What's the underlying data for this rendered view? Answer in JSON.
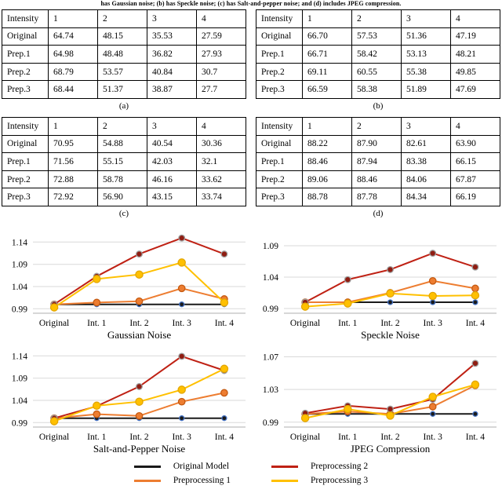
{
  "caption": "has Gaussian noise; (b) has Speckle noise; (c) has Salt-and-pepper noise; and (d) includes JPEG compression.",
  "tables": [
    {
      "caption_label": "(a)",
      "headers": [
        "Intensity",
        "1",
        "2",
        "3",
        "4"
      ],
      "rows": [
        [
          "Original",
          "64.74",
          "48.15",
          "35.53",
          "27.59"
        ],
        [
          "Prep.1",
          "64.98",
          "48.48",
          "36.82",
          "27.93"
        ],
        [
          "Prep.2",
          "68.79",
          "53.57",
          "40.84",
          "30.7"
        ],
        [
          "Prep.3",
          "68.44",
          "51.37",
          "38.87",
          "27.7"
        ]
      ]
    },
    {
      "caption_label": "(b)",
      "headers": [
        "Intensity",
        "1",
        "2",
        "3",
        "4"
      ],
      "rows": [
        [
          "Original",
          "66.70",
          "57.53",
          "51.36",
          "47.19"
        ],
        [
          "Prep.1",
          "66.71",
          "58.42",
          "53.13",
          "48.21"
        ],
        [
          "Prep.2",
          "69.11",
          "60.55",
          "55.38",
          "49.85"
        ],
        [
          "Prep.3",
          "66.59",
          "58.38",
          "51.89",
          "47.69"
        ]
      ]
    },
    {
      "caption_label": "(c)",
      "headers": [
        "Intensity",
        "1",
        "2",
        "3",
        "4"
      ],
      "rows": [
        [
          "Original",
          "70.95",
          "54.88",
          "40.54",
          "30.36"
        ],
        [
          "Prep.1",
          "71.56",
          "55.15",
          "42.03",
          "32.1"
        ],
        [
          "Prep.2",
          "72.88",
          "58.78",
          "46.16",
          "33.62"
        ],
        [
          "Prep.3",
          "72.92",
          "56.90",
          "43.15",
          "33.74"
        ]
      ]
    },
    {
      "caption_label": "(d)",
      "headers": [
        "Intensity",
        "1",
        "2",
        "3",
        "4"
      ],
      "rows": [
        [
          "Original",
          "88.22",
          "87.90",
          "82.61",
          "63.90"
        ],
        [
          "Prep.1",
          "88.46",
          "87.94",
          "83.38",
          "66.15"
        ],
        [
          "Prep.2",
          "89.06",
          "88.46",
          "84.06",
          "67.87"
        ],
        [
          "Prep.3",
          "88.78",
          "87.78",
          "84.34",
          "66.19"
        ]
      ]
    }
  ],
  "colors": {
    "original_model": "#1a1a1a",
    "preprocessing_1": "#ed7d31",
    "preprocessing_2": "#bf2114",
    "preprocessing_3": "#ffc000",
    "gridline": "#d9d9d9",
    "axis": "#bfbfbf"
  },
  "legend": [
    {
      "label": "Original Model",
      "color": "#1a1a1a"
    },
    {
      "label": "Preprocessing 2",
      "color": "#bf2114"
    },
    {
      "label": "Preprocessing 1",
      "color": "#ed7d31"
    },
    {
      "label": "Preprocessing 3",
      "color": "#ffc000"
    }
  ],
  "chart_data": [
    {
      "type": "line",
      "title": "Gaussian Noise",
      "x_labels": [
        "Original",
        "Int. 1",
        "Int. 2",
        "Int. 3",
        "Int. 4"
      ],
      "y_ticks": [
        0.99,
        1.04,
        1.09,
        1.14
      ],
      "ylim": [
        0.98,
        1.16
      ],
      "grid": true,
      "series": [
        {
          "name": "Original Model",
          "color": "#1a1a1a",
          "marker_stroke": "#4472c4",
          "marker_r": 3.0,
          "values": [
            1.0,
            1.0,
            1.0,
            1.0,
            1.0
          ]
        },
        {
          "name": "Preprocessing 1",
          "color": "#ed7d31",
          "marker_stroke": "#c55a11",
          "marker_r": 4.2,
          "values": [
            1.0,
            1.004,
            1.007,
            1.036,
            1.012
          ]
        },
        {
          "name": "Preprocessing 2",
          "color": "#bf2114",
          "marker_fill": "#8f1d12",
          "marker_stroke": "#9e9e9e",
          "marker_r": 3.8,
          "values": [
            1.0,
            1.063,
            1.113,
            1.149,
            1.113
          ]
        },
        {
          "name": "Preprocessing 3",
          "color": "#ffc000",
          "marker_stroke": "#e3a600",
          "marker_r": 4.6,
          "values": [
            0.993,
            1.057,
            1.067,
            1.094,
            1.004
          ]
        }
      ]
    },
    {
      "type": "line",
      "title": "Speckle Noise",
      "x_labels": [
        "Original",
        "Int. 1",
        "Int. 2",
        "Int. 3",
        "Int. 4"
      ],
      "y_ticks": [
        0.99,
        1.04,
        1.09
      ],
      "ylim": [
        0.9825,
        1.11
      ],
      "grid": true,
      "series": [
        {
          "name": "Original Model",
          "color": "#1a1a1a",
          "marker_stroke": "#4472c4",
          "marker_r": 3.0,
          "values": [
            1.0,
            1.0,
            1.0,
            1.0,
            1.0
          ]
        },
        {
          "name": "Preprocessing 1",
          "color": "#ed7d31",
          "marker_stroke": "#c55a11",
          "marker_r": 4.2,
          "values": [
            1.0,
            1.0,
            1.015,
            1.034,
            1.022
          ]
        },
        {
          "name": "Preprocessing 2",
          "color": "#bf2114",
          "marker_fill": "#8f1d12",
          "marker_stroke": "#9e9e9e",
          "marker_r": 3.8,
          "values": [
            1.0,
            1.036,
            1.052,
            1.078,
            1.056
          ]
        },
        {
          "name": "Preprocessing 3",
          "color": "#ffc000",
          "marker_stroke": "#e3a600",
          "marker_r": 4.6,
          "values": [
            0.993,
            0.998,
            1.014,
            1.01,
            1.011
          ]
        }
      ]
    },
    {
      "type": "line",
      "title": "Salt-and-Pepper Noise",
      "x_labels": [
        "Original",
        "Int. 1",
        "Int. 2",
        "Int. 3",
        "Int. 4"
      ],
      "y_ticks": [
        0.99,
        1.04,
        1.09,
        1.14
      ],
      "ylim": [
        0.98,
        1.16
      ],
      "grid": true,
      "series": [
        {
          "name": "Original Model",
          "color": "#1a1a1a",
          "marker_stroke": "#4472c4",
          "marker_r": 3.0,
          "values": [
            1.0,
            1.0,
            1.0,
            1.0,
            1.0
          ]
        },
        {
          "name": "Preprocessing 1",
          "color": "#ed7d31",
          "marker_stroke": "#c55a11",
          "marker_r": 4.2,
          "values": [
            1.0,
            1.009,
            1.005,
            1.037,
            1.057
          ]
        },
        {
          "name": "Preprocessing 2",
          "color": "#bf2114",
          "marker_fill": "#8f1d12",
          "marker_stroke": "#9e9e9e",
          "marker_r": 3.8,
          "values": [
            1.0,
            1.027,
            1.071,
            1.139,
            1.107
          ]
        },
        {
          "name": "Preprocessing 3",
          "color": "#ffc000",
          "marker_stroke": "#e3a600",
          "marker_r": 4.6,
          "values": [
            0.993,
            1.028,
            1.037,
            1.064,
            1.111
          ]
        }
      ]
    },
    {
      "type": "line",
      "title": "JPEG Compression",
      "x_labels": [
        "Original",
        "Int. 1",
        "Int. 2",
        "Int. 3",
        "Int. 4"
      ],
      "y_ticks": [
        0.99,
        1.03,
        1.07
      ],
      "ylim": [
        0.984,
        1.082
      ],
      "grid": true,
      "series": [
        {
          "name": "Original Model",
          "color": "#1a1a1a",
          "marker_stroke": "#4472c4",
          "marker_r": 3.0,
          "values": [
            1.0,
            1.0,
            1.0,
            1.0,
            1.0
          ]
        },
        {
          "name": "Preprocessing 1",
          "color": "#ed7d31",
          "marker_stroke": "#c55a11",
          "marker_r": 4.2,
          "values": [
            1.0,
            1.003,
            1.0,
            1.009,
            1.035
          ]
        },
        {
          "name": "Preprocessing 2",
          "color": "#bf2114",
          "marker_fill": "#8f1d12",
          "marker_stroke": "#9e9e9e",
          "marker_r": 3.8,
          "values": [
            1.001,
            1.01,
            1.006,
            1.018,
            1.062
          ]
        },
        {
          "name": "Preprocessing 3",
          "color": "#ffc000",
          "marker_stroke": "#e3a600",
          "marker_r": 4.6,
          "values": [
            0.995,
            1.006,
            0.998,
            1.021,
            1.036
          ]
        }
      ]
    }
  ]
}
